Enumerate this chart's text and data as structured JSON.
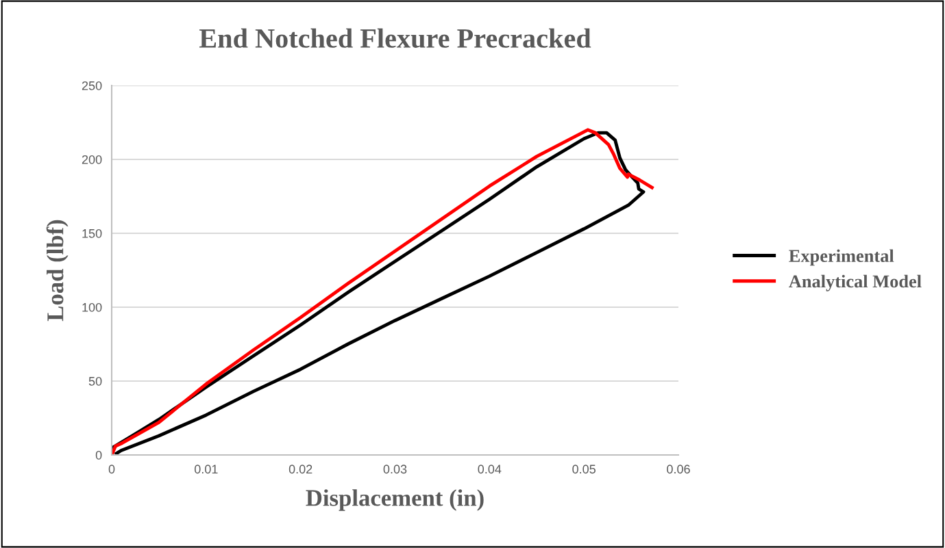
{
  "chart_data": {
    "type": "line",
    "title": "End Notched Flexure Precracked",
    "xlabel": "Displacement (in)",
    "ylabel": "Load (lbf)",
    "xlim": [
      0,
      0.06
    ],
    "xticks": [
      0,
      0.01,
      0.02,
      0.03,
      0.04,
      0.05,
      0.06
    ],
    "ylim": [
      0,
      250
    ],
    "yticks": [
      0,
      50,
      100,
      150,
      200,
      250
    ],
    "grid": "y",
    "legend": "right",
    "marker": "none",
    "line_style": "solid",
    "series": [
      {
        "name": "Experimental",
        "color": "#000000",
        "x": [
          0,
          0.0027,
          0.005,
          0.01,
          0.015,
          0.02,
          0.025,
          0.03,
          0.035,
          0.04,
          0.045,
          0.05,
          0.0515,
          0.0524,
          0.0533,
          0.0538,
          0.0544,
          0.0551,
          0.0557,
          0.0558,
          0.0563,
          0.0547,
          0.05,
          0.045,
          0.04,
          0.035,
          0.03,
          0.025,
          0.02,
          0.015,
          0.01,
          0.005,
          0.001,
          0.0005
        ],
        "values": [
          4.6,
          15,
          24,
          46,
          67,
          88,
          110,
          131,
          152,
          173,
          195,
          214,
          218,
          218,
          213,
          201,
          193,
          188,
          184,
          180,
          178,
          169,
          153,
          137,
          121,
          106,
          91,
          75,
          58,
          43,
          27,
          13,
          3,
          1
        ]
      },
      {
        "name": "Analytical Model",
        "color": "#ff0000",
        "x": [
          0,
          0.0004,
          0.0011,
          0.005,
          0.01,
          0.015,
          0.02,
          0.025,
          0.03,
          0.035,
          0.04,
          0.045,
          0.0504,
          0.0512,
          0.0526,
          0.0531,
          0.0538,
          0.0546,
          0.0547,
          0.0559,
          0.0572
        ],
        "values": [
          0,
          6,
          8,
          22,
          48,
          71,
          93,
          116,
          138,
          160,
          182,
          202,
          220,
          218,
          210,
          204,
          194,
          188,
          190,
          186,
          181
        ]
      }
    ]
  }
}
